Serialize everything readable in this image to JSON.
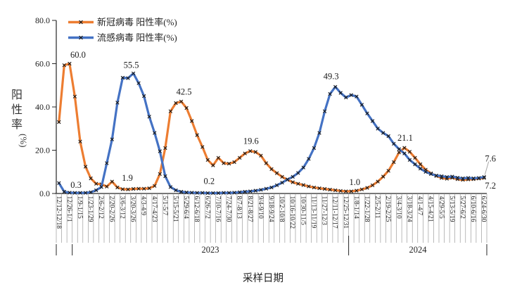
{
  "legend": {
    "items": [
      {
        "id": "covid",
        "label": "新冠病毒 阳性率(%)",
        "color": "#ED7D31"
      },
      {
        "id": "flu",
        "label": "流感病毒 阳性率(%)",
        "color": "#4472C4"
      }
    ]
  },
  "y_axis": {
    "title_chars": [
      "阳",
      "性",
      "率"
    ],
    "title_unit": "(%)",
    "ticks": [
      "0.0",
      "20.0",
      "40.0",
      "60.0",
      "80.0"
    ],
    "min": 0,
    "max": 80
  },
  "x_axis": {
    "title": "采样日期",
    "years": [
      "2023",
      "2024"
    ]
  },
  "chart_data": {
    "type": "line",
    "title": "",
    "xlabel": "采样日期",
    "ylabel": "阳性率(%)",
    "ylim": [
      0,
      80
    ],
    "n_points": 81,
    "weeks_per_label": 2,
    "x_tick_labels": [
      "12/12-12/18",
      "12/26-1/1",
      "1/9-1/15",
      "1/23-1/29",
      "2/6-2/12",
      "2/20-2/26",
      "3/6-3/12",
      "3/20-3/26",
      "4/3-4/9",
      "4/17-4/23",
      "5/1-5/7",
      "5/15-5/21",
      "5/29-6/4",
      "6/12-6/18",
      "6/26-7/2",
      "7/10-7/16",
      "7/24-7/30",
      "8/7-8/13",
      "8/21-8/27",
      "9/4-9/10",
      "9/18-9/24",
      "10/2-10/8",
      "10/16-10/22",
      "10/30-11/5",
      "11/13-11/19",
      "11/27-12/3",
      "12/11-12/17",
      "12/25-12/31",
      "1/8-1/14",
      "1/22-1/28",
      "2/5-2/11",
      "2/19-2/25",
      "3/4-3/10",
      "3/18-3/24",
      "4/1-4/7",
      "4/15-4/21",
      "4/29-5/5",
      "5/13-5/19",
      "5/27-6/2",
      "6/10-6/16",
      "6/24-6/30"
    ],
    "series": [
      {
        "name": "新冠病毒 阳性率(%)",
        "color": "#ED7D31",
        "values": [
          33.0,
          59.3,
          60.0,
          44.8,
          24.0,
          12.4,
          7.0,
          4.5,
          4.3,
          3.2,
          5.5,
          2.8,
          2.0,
          1.9,
          2.1,
          2.2,
          2.2,
          2.4,
          3.5,
          9.0,
          21.0,
          38.0,
          41.8,
          42.5,
          39.5,
          33.5,
          27.0,
          21.5,
          15.5,
          13.0,
          16.5,
          14.0,
          13.8,
          14.5,
          16.5,
          18.5,
          19.6,
          19.2,
          17.5,
          14.0,
          11.3,
          9.4,
          7.7,
          6.3,
          5.2,
          4.5,
          3.9,
          3.3,
          2.8,
          2.4,
          2.1,
          1.8,
          1.5,
          1.2,
          1.0,
          1.0,
          1.3,
          1.9,
          2.6,
          3.8,
          5.5,
          7.8,
          10.5,
          14.5,
          19.0,
          21.1,
          19.3,
          16.5,
          13.5,
          11.0,
          9.3,
          8.1,
          7.2,
          6.8,
          7.3,
          6.6,
          6.3,
          6.5,
          6.6,
          6.9,
          7.2
        ]
      },
      {
        "name": "流感病毒 阳性率(%)",
        "color": "#4472C4",
        "values": [
          4.8,
          0.8,
          0.4,
          0.3,
          0.3,
          0.3,
          0.6,
          1.5,
          3.0,
          14.0,
          25.0,
          42.0,
          53.5,
          53.3,
          55.5,
          51.0,
          45.0,
          35.5,
          28.0,
          19.5,
          8.0,
          3.0,
          1.5,
          0.8,
          0.5,
          0.4,
          0.3,
          0.3,
          0.2,
          0.2,
          0.2,
          0.3,
          0.3,
          0.4,
          0.6,
          0.8,
          1.0,
          1.3,
          1.7,
          2.2,
          2.8,
          3.8,
          5.0,
          6.5,
          7.7,
          9.5,
          12.0,
          16.0,
          21.0,
          28.0,
          38.0,
          46.0,
          49.3,
          46.5,
          44.4,
          45.5,
          44.8,
          41.0,
          37.0,
          33.5,
          30.0,
          28.0,
          26.5,
          23.0,
          20.5,
          18.5,
          15.5,
          13.5,
          11.5,
          10.0,
          9.0,
          8.3,
          8.0,
          7.6,
          7.8,
          7.3,
          7.0,
          7.2,
          7.0,
          7.2,
          7.6
        ]
      }
    ],
    "annotations": [
      {
        "id": "a60",
        "series": 0,
        "week": 2,
        "text": "60.0"
      },
      {
        "id": "a03",
        "series": 1,
        "week": 4,
        "text": "0.3"
      },
      {
        "id": "a555",
        "series": 1,
        "week": 14,
        "text": "55.5"
      },
      {
        "id": "a19",
        "series": 0,
        "week": 13,
        "text": "1.9"
      },
      {
        "id": "a425",
        "series": 0,
        "week": 23,
        "text": "42.5"
      },
      {
        "id": "a02",
        "series": 1,
        "week": 28,
        "text": "0.2"
      },
      {
        "id": "a196",
        "series": 0,
        "week": 36,
        "text": "19.6"
      },
      {
        "id": "a493",
        "series": 1,
        "week": 52,
        "text": "49.3"
      },
      {
        "id": "a10",
        "series": 0,
        "week": 55,
        "text": "1.0"
      },
      {
        "id": "a211",
        "series": 0,
        "week": 65,
        "text": "21.1"
      },
      {
        "id": "a76",
        "series": 1,
        "week": 80,
        "text": "7.6"
      },
      {
        "id": "a72",
        "series": 0,
        "week": 80,
        "text": "7.2"
      }
    ],
    "legend_position": "top-left",
    "grid": false
  }
}
